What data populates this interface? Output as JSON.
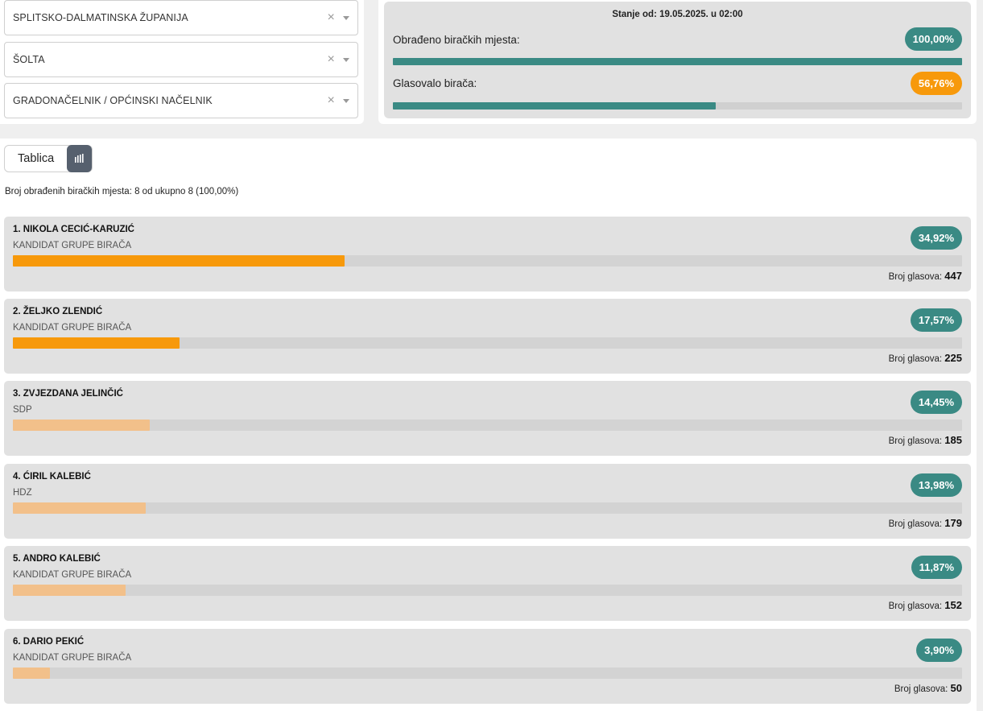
{
  "filters": {
    "county": "SPLITSKO-DALMATINSKA ŽUPANIJA",
    "municipality": "ŠOLTA",
    "office": "GRADONAČELNIK / OPĆINSKI NAČELNIK",
    "clear_symbol": "×"
  },
  "summary": {
    "as_of": "Stanje od: 19.05.2025. u 02:00",
    "processed_label": "Obrađeno biračkih mjesta:",
    "processed_pct": "100,00%",
    "processed_fraction": 1.0,
    "turnout_label": "Glasovalo birača:",
    "turnout_pct": "56,76%",
    "turnout_fraction": 0.5676
  },
  "view_toggle": {
    "table_label": "Tablica",
    "chart_icon": "bar-chart-icon"
  },
  "processed_text": "Broj obrađenih biračkih mjesta: 8 od ukupno 8 (100,00%)",
  "votes_label": "Broj glasova:",
  "colors": {
    "teal": "#3a8a84",
    "orange": "#f7990b",
    "orange_light": "#f2c08a",
    "panel_grey": "#e1e1e1"
  },
  "candidates": [
    {
      "name": "1. NIKOLA CECIĆ-KARUZIĆ",
      "party": "KANDIDAT GRUPE BIRAČA",
      "pct": "34,92%",
      "fraction": 0.3492,
      "votes": "447",
      "bar_color": "#f7990b"
    },
    {
      "name": "2. ŽELJKO ZLENDIĆ",
      "party": "KANDIDAT GRUPE BIRAČA",
      "pct": "17,57%",
      "fraction": 0.1757,
      "votes": "225",
      "bar_color": "#f7990b"
    },
    {
      "name": "3. ZVJEZDANA JELINČIĆ",
      "party": "SDP",
      "pct": "14,45%",
      "fraction": 0.1445,
      "votes": "185",
      "bar_color": "#f2c08a"
    },
    {
      "name": "4. ĆIRIL KALEBIĆ",
      "party": "HDZ",
      "pct": "13,98%",
      "fraction": 0.1398,
      "votes": "179",
      "bar_color": "#f2c08a"
    },
    {
      "name": "5. ANDRO KALEBIĆ",
      "party": "KANDIDAT GRUPE BIRAČA",
      "pct": "11,87%",
      "fraction": 0.1187,
      "votes": "152",
      "bar_color": "#f2c08a"
    },
    {
      "name": "6. DARIO PEKIĆ",
      "party": "KANDIDAT GRUPE BIRAČA",
      "pct": "3,90%",
      "fraction": 0.039,
      "votes": "50",
      "bar_color": "#f2c08a"
    }
  ]
}
